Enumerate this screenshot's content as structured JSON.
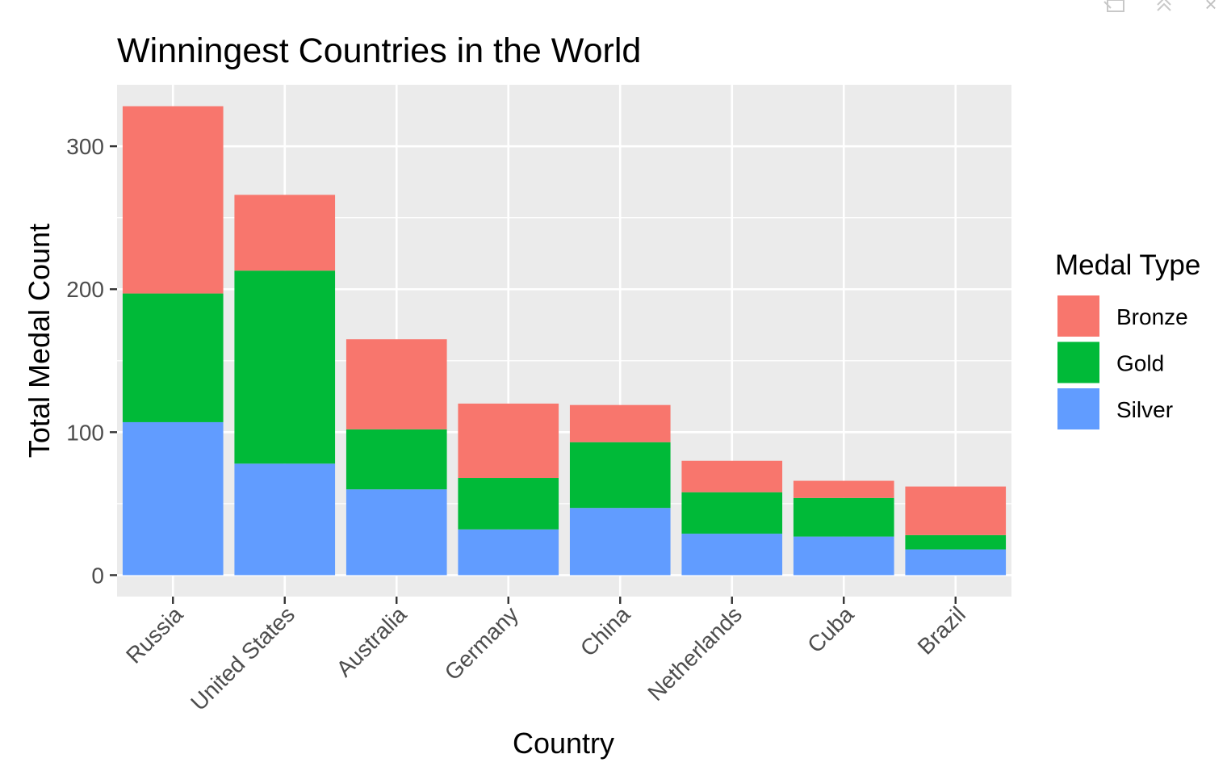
{
  "window_controls": {
    "icons": [
      "popout-icon",
      "collapse-icon",
      "close-icon"
    ],
    "close_glyph": "×"
  },
  "chart_data": {
    "type": "bar",
    "stacked": true,
    "title": "Winningest Countries in the World",
    "xlabel": "Country",
    "ylabel": "Total Medal Count",
    "categories": [
      "Russia",
      "United States",
      "Australia",
      "Germany",
      "China",
      "Netherlands",
      "Cuba",
      "Brazil"
    ],
    "series": [
      {
        "name": "Silver",
        "color": "#619CFF",
        "values": [
          107,
          78,
          60,
          32,
          47,
          29,
          27,
          18
        ]
      },
      {
        "name": "Gold",
        "color": "#00BA38",
        "values": [
          90,
          135,
          42,
          36,
          46,
          29,
          27,
          10
        ]
      },
      {
        "name": "Bronze",
        "color": "#F8766D",
        "values": [
          131,
          53,
          63,
          52,
          26,
          22,
          12,
          34
        ]
      }
    ],
    "ylim": [
      -15,
      343
    ],
    "yticks": [
      0,
      100,
      200,
      300
    ],
    "ytick_labels": [
      "0",
      "100",
      "200",
      "300"
    ],
    "grid": true,
    "panel_background": "#EBEBEB",
    "legend": {
      "title": "Medal Type",
      "position": "right",
      "entries": [
        {
          "label": "Bronze",
          "color": "#F8766D"
        },
        {
          "label": "Gold",
          "color": "#00BA38"
        },
        {
          "label": "Silver",
          "color": "#619CFF"
        }
      ]
    }
  }
}
